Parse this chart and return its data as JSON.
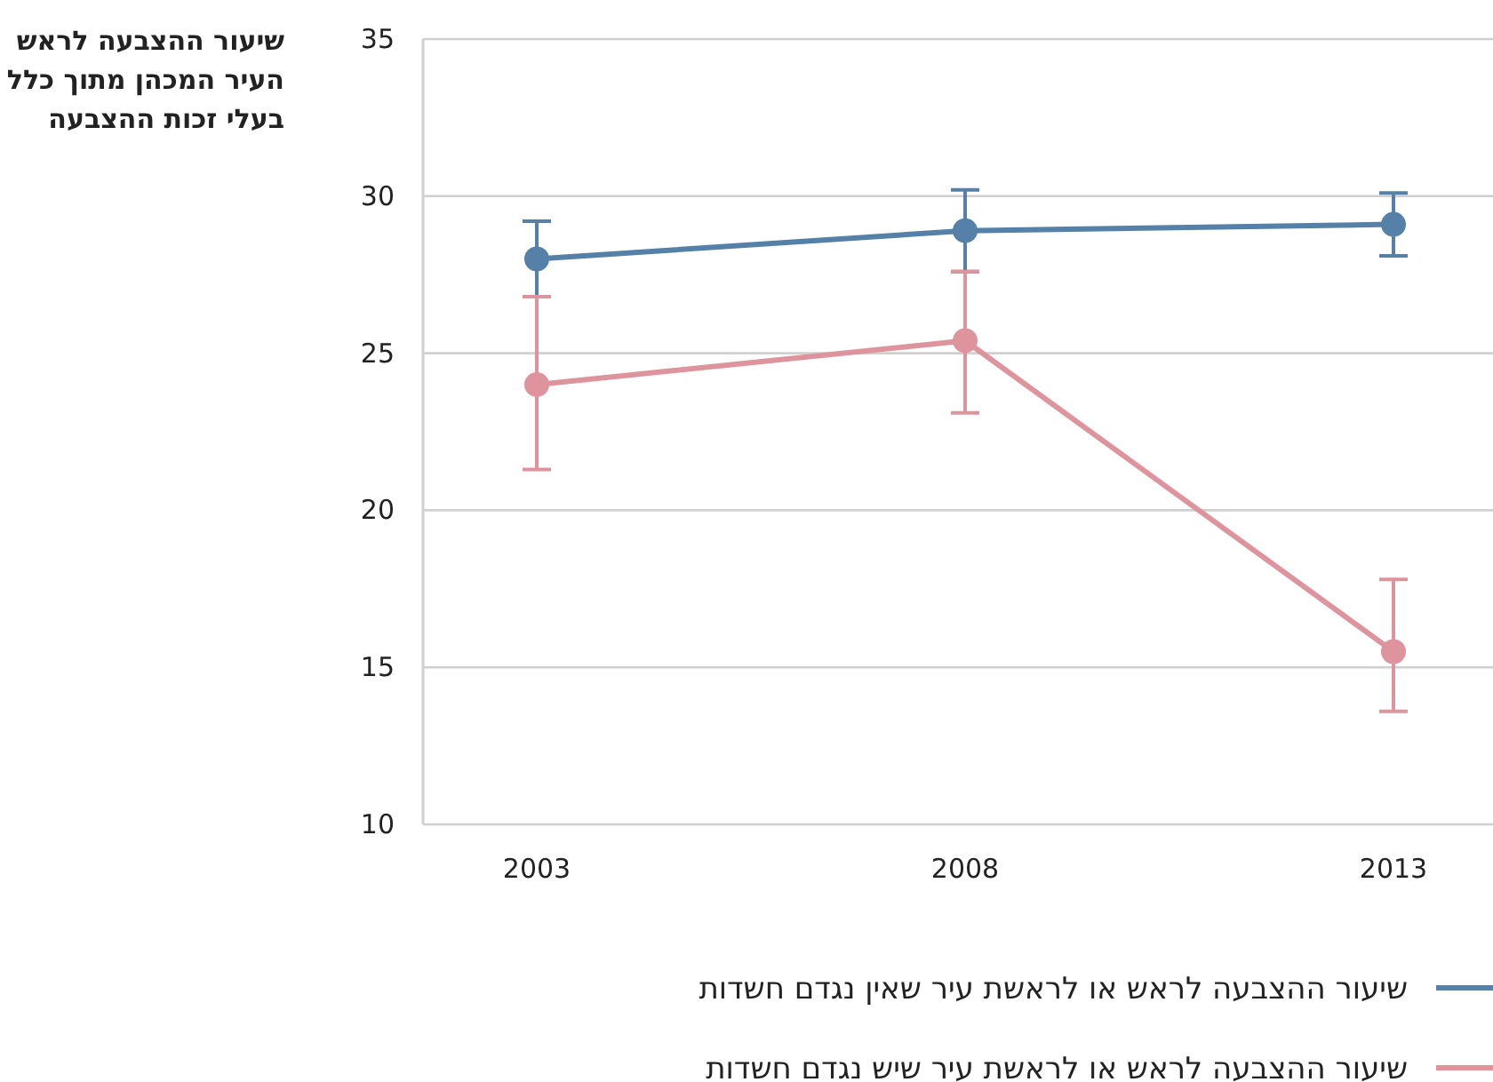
{
  "chart_data": {
    "type": "line",
    "ylabel": "שיעור ההצבעה לראש העיר המכהן מתוך כלל בעלי זכות ההצבעה",
    "categories": [
      "2003",
      "2008",
      "2013"
    ],
    "series": [
      {
        "name": "שיעור ההצבעה לראש או לראשת עיר שאין נגדם חשדות",
        "color": "#5580a8",
        "values": [
          28.0,
          28.9,
          29.1
        ],
        "errors": [
          [
            26.8,
            29.2
          ],
          [
            27.6,
            30.2
          ],
          [
            28.1,
            30.1
          ]
        ]
      },
      {
        "name": "שיעור ההצבעה לראש או לראשת עיר שיש נגדם חשדות",
        "color": "#de949c",
        "values": [
          24.0,
          25.4,
          15.5
        ],
        "errors": [
          [
            21.3,
            26.8
          ],
          [
            23.1,
            27.6
          ],
          [
            13.6,
            17.8
          ]
        ]
      }
    ],
    "ylim": [
      10,
      35
    ],
    "yticks": [
      10,
      15,
      20,
      25,
      30,
      35
    ],
    "grid": "y",
    "legend": "bottom",
    "marker": "circle",
    "line_style": "solid"
  }
}
